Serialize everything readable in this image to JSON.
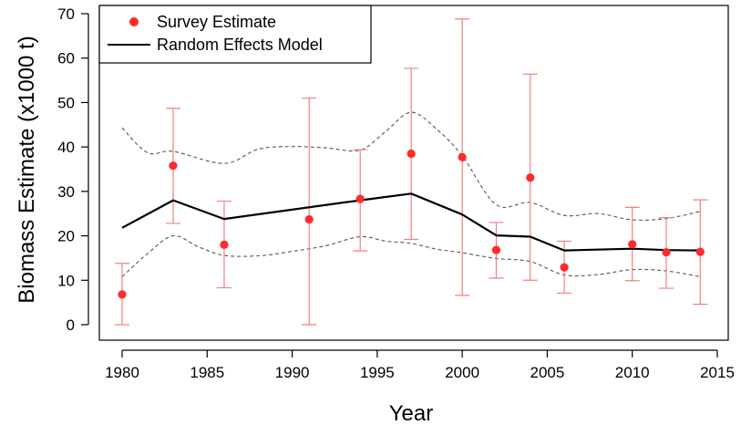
{
  "chart_data": {
    "type": "scatter",
    "xlabel": "Year",
    "ylabel": "Biomass Estimate (x1000 t)",
    "xlim": [
      1980,
      2015
    ],
    "ylim": [
      0,
      70
    ],
    "x_ticks": [
      "1980",
      "1985",
      "1990",
      "1995",
      "2000",
      "2005",
      "2010",
      "2015"
    ],
    "y_ticks": [
      "0",
      "10",
      "20",
      "30",
      "40",
      "50",
      "60",
      "70"
    ],
    "grid": false,
    "legend": {
      "placement": "top-left",
      "entries": [
        "Survey Estimate",
        "Random Effects Model"
      ]
    },
    "colors": {
      "survey": "#ff2a2a",
      "errorbar": "#f08080",
      "model": "#000000",
      "ci": "#555555"
    },
    "series": [
      {
        "name": "Survey Estimate",
        "kind": "points_with_error",
        "x": [
          1980,
          1983,
          1986,
          1991,
          1994,
          1997,
          2000,
          2002,
          2004,
          2006,
          2010,
          2012,
          2014
        ],
        "y": [
          6.8,
          35.8,
          18.0,
          23.7,
          28.3,
          38.5,
          37.7,
          16.8,
          33.1,
          12.9,
          18.1,
          16.3,
          16.4
        ],
        "lower": [
          0.0,
          22.8,
          8.3,
          0.0,
          16.6,
          19.2,
          6.6,
          10.5,
          10.0,
          7.1,
          9.9,
          8.2,
          4.6
        ],
        "upper": [
          13.8,
          48.7,
          27.8,
          51.0,
          39.4,
          57.7,
          68.8,
          23.0,
          56.4,
          18.8,
          26.4,
          24.1,
          28.1
        ]
      },
      {
        "name": "Random Effects Model",
        "kind": "line",
        "x": [
          1980,
          1983,
          1986,
          1994,
          1997,
          2000,
          2002,
          2004,
          2006,
          2010,
          2012,
          2014
        ],
        "y": [
          21.8,
          28.0,
          23.8,
          28.0,
          29.5,
          24.8,
          20.1,
          19.8,
          16.7,
          17.1,
          16.8,
          16.7
        ]
      },
      {
        "kind": "ci_upper",
        "x": [
          1980,
          1981.5,
          1983,
          1986,
          1988,
          1990,
          1992,
          1994,
          1995.5,
          1997,
          1998.5,
          2000,
          2002,
          2004,
          2006,
          2008,
          2010,
          2012,
          2014
        ],
        "y": [
          44.3,
          38.7,
          39.0,
          36.3,
          39.5,
          40.1,
          39.8,
          39.3,
          43.5,
          47.8,
          44.0,
          38.0,
          27.0,
          27.5,
          24.6,
          25.0,
          23.6,
          23.9,
          25.5
        ]
      },
      {
        "kind": "ci_lower",
        "x": [
          1980,
          1981.5,
          1983,
          1984.5,
          1986,
          1988,
          1990,
          1992,
          1994,
          1995.5,
          1997,
          1998.5,
          2000,
          2002,
          2004,
          2006,
          2008,
          2010,
          2012,
          2014
        ],
        "y": [
          10.8,
          16.0,
          20.0,
          17.5,
          15.6,
          15.5,
          16.5,
          17.8,
          19.8,
          18.8,
          18.3,
          17.0,
          16.2,
          14.9,
          14.2,
          11.2,
          11.3,
          12.4,
          12.1,
          10.8
        ]
      }
    ]
  }
}
